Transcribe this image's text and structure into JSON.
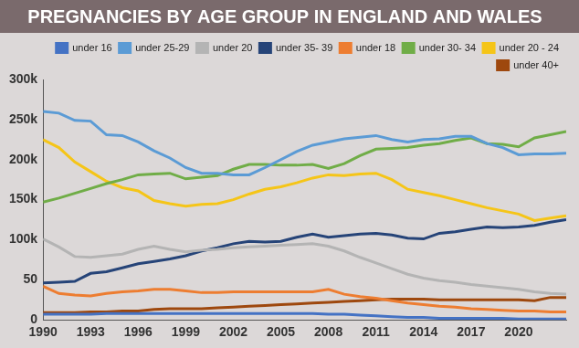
{
  "chart_data": {
    "type": "line",
    "title": "PREGNANCIES BY AGE GROUP IN ENGLAND AND WALES",
    "x": [
      1990,
      1991,
      1992,
      1993,
      1994,
      1995,
      1996,
      1997,
      1998,
      1999,
      2000,
      2001,
      2002,
      2003,
      2004,
      2005,
      2006,
      2007,
      2008,
      2009,
      2010,
      2011,
      2012,
      2013,
      2014,
      2015,
      2016,
      2017,
      2018,
      2019,
      2020,
      2021,
      2022,
      2023
    ],
    "xlim": [
      1990,
      2023
    ],
    "xticks": [
      1990,
      1993,
      1996,
      1999,
      2002,
      2005,
      2008,
      2011,
      2014,
      2017,
      2020
    ],
    "ylim": [
      0,
      300
    ],
    "yticks": [
      0,
      50,
      {
        "value": 100,
        "label": "100k"
      },
      {
        "value": 150,
        "label": "150k"
      },
      {
        "value": 200,
        "label": "200k"
      },
      {
        "value": 250,
        "label": "250k"
      },
      {
        "value": 300,
        "label": "300k"
      }
    ],
    "grid": false,
    "legend": "upper right",
    "series": [
      {
        "name": "under 16",
        "color": "#4472c4",
        "values": [
          7,
          7,
          7,
          7,
          8,
          8,
          8,
          8,
          8,
          8,
          8,
          8,
          8,
          8,
          8,
          8,
          8,
          8,
          7,
          7,
          6,
          5,
          4,
          3,
          3,
          2,
          2,
          2,
          2,
          2,
          1,
          1,
          1,
          1
        ]
      },
      {
        "name": "under 25-29",
        "color": "#5b9bd5",
        "values": [
          260,
          258,
          249,
          248,
          231,
          230,
          222,
          211,
          202,
          190,
          183,
          183,
          181,
          181,
          190,
          200,
          210,
          218,
          222,
          226,
          228,
          230,
          225,
          222,
          225,
          226,
          229,
          229,
          220,
          215,
          206,
          207,
          207,
          208
        ]
      },
      {
        "name": "under 20",
        "color": "#b4b4b4",
        "values": [
          101,
          91,
          79,
          78,
          80,
          82,
          88,
          92,
          88,
          85,
          87,
          88,
          90,
          91,
          92,
          93,
          94,
          95,
          92,
          86,
          78,
          71,
          64,
          57,
          52,
          49,
          47,
          44,
          42,
          40,
          38,
          35,
          33,
          32
        ]
      },
      {
        "name": "under 35- 39",
        "color": "#264478",
        "values": [
          46,
          47,
          48,
          58,
          60,
          65,
          70,
          73,
          76,
          80,
          86,
          90,
          95,
          98,
          97,
          98,
          103,
          107,
          103,
          105,
          107,
          108,
          106,
          102,
          101,
          108,
          110,
          113,
          116,
          115,
          116,
          118,
          122,
          125
        ]
      },
      {
        "name": "under 18",
        "color": "#ed7d31",
        "values": [
          42,
          33,
          31,
          30,
          33,
          35,
          36,
          38,
          38,
          36,
          34,
          34,
          35,
          35,
          35,
          35,
          35,
          35,
          38,
          32,
          29,
          27,
          24,
          21,
          19,
          17,
          16,
          14,
          13,
          12,
          11,
          11,
          10,
          10
        ]
      },
      {
        "name": "under 30- 34",
        "color": "#70ad47",
        "values": [
          147,
          152,
          158,
          164,
          170,
          175,
          181,
          182,
          183,
          176,
          178,
          180,
          188,
          194,
          194,
          193,
          193,
          194,
          189,
          195,
          205,
          213,
          214,
          215,
          218,
          220,
          224,
          227,
          220,
          219,
          216,
          227,
          231,
          235
        ]
      },
      {
        "name": "under 20 - 24",
        "color": "#f5c518",
        "values": [
          225,
          215,
          197,
          185,
          173,
          165,
          161,
          149,
          145,
          142,
          144,
          145,
          150,
          157,
          163,
          166,
          171,
          177,
          181,
          180,
          182,
          183,
          175,
          163,
          159,
          155,
          150,
          145,
          140,
          136,
          132,
          124,
          127,
          130
        ]
      },
      {
        "name": "under 40+",
        "color": "#9e480e",
        "values": [
          9,
          9,
          9,
          10,
          10,
          11,
          11,
          13,
          14,
          14,
          14,
          15,
          16,
          17,
          18,
          19,
          20,
          21,
          22,
          23,
          24,
          25,
          26,
          26,
          26,
          25,
          25,
          25,
          25,
          25,
          25,
          24,
          28,
          28
        ]
      }
    ]
  }
}
